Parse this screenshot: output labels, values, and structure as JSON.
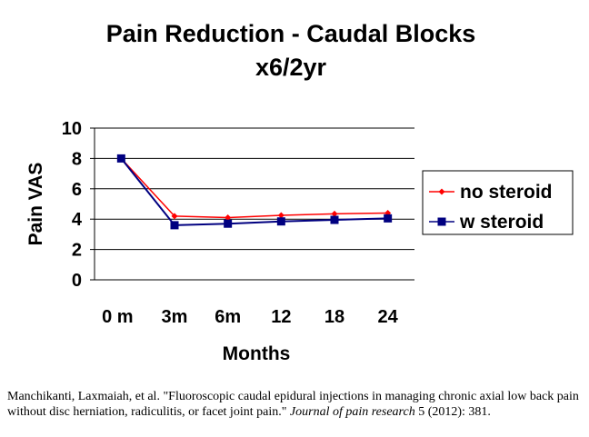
{
  "title_line1": "Pain Reduction - Caudal Blocks",
  "title_line2": "x6/2yr",
  "citation": {
    "text_before": "Manchikanti, Laxmaiah, et al. \"Fluoroscopic caudal epidural injections in managing chronic axial low back pain without disc herniation, radiculitis, or facet joint pain.\" ",
    "journal": "Journal of pain research",
    "text_after": " 5 (2012): 381."
  },
  "colors": {
    "no_steroid": "#FF0000",
    "w_steroid": "#000080"
  },
  "chart_data": {
    "type": "line",
    "title": "Pain Reduction - Caudal Blocks x6/2yr",
    "xlabel": "Months",
    "ylabel": "Pain VAS",
    "categories": [
      "0 m",
      "3m",
      "6m",
      "12",
      "18",
      "24"
    ],
    "ylim": [
      0,
      10
    ],
    "yticks": [
      0,
      2,
      4,
      6,
      8,
      10
    ],
    "grid": true,
    "legend_position": "right",
    "series": [
      {
        "name": "no steroid",
        "values": [
          8.0,
          4.2,
          4.1,
          4.25,
          4.35,
          4.4
        ],
        "color": "#FF0000",
        "marker": "diamond"
      },
      {
        "name": "w steroid",
        "values": [
          8.0,
          3.6,
          3.7,
          3.85,
          3.95,
          4.05
        ],
        "color": "#000080",
        "marker": "square"
      }
    ]
  }
}
